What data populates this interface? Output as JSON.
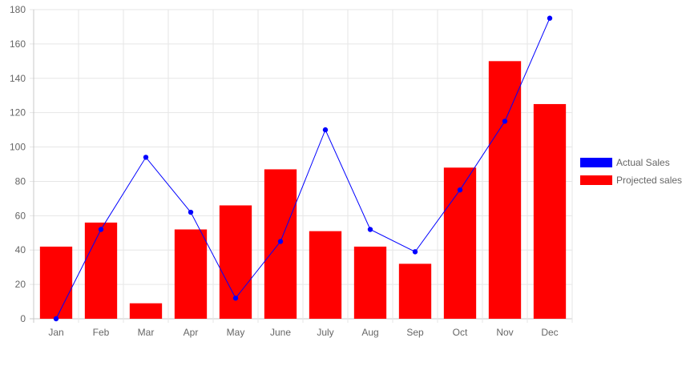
{
  "chart_data": {
    "type": "bar",
    "categories": [
      "Jan",
      "Feb",
      "Mar",
      "Apr",
      "May",
      "June",
      "July",
      "Aug",
      "Sep",
      "Oct",
      "Nov",
      "Dec"
    ],
    "series": [
      {
        "name": "Actual Sales",
        "type": "line",
        "color": "#0000ff",
        "values": [
          0,
          52,
          94,
          62,
          12,
          45,
          110,
          52,
          39,
          75,
          115,
          175
        ]
      },
      {
        "name": "Projected sales",
        "type": "bar",
        "color": "#ff0000",
        "values": [
          42,
          56,
          9,
          52,
          66,
          87,
          51,
          42,
          32,
          88,
          150,
          125
        ]
      }
    ],
    "ylim": [
      0,
      180
    ],
    "yticks": [
      "0",
      "20",
      "40",
      "60",
      "80",
      "100",
      "120",
      "140",
      "160",
      "180"
    ],
    "grid": true,
    "legend_position": "right"
  }
}
